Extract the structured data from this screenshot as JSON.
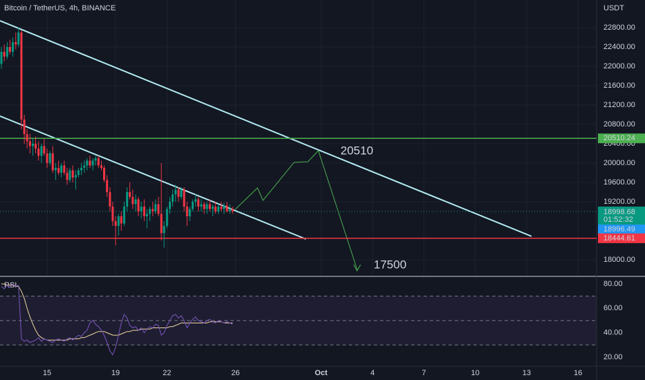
{
  "chart_data": {
    "type": "candlestick",
    "title": "Bitcoin / TetherUS, 4h, BINANCE",
    "price_axis_label": "USDT",
    "xlim": [
      12.25,
      47.08
    ],
    "xticks": [
      {
        "value": 15,
        "label": "15"
      },
      {
        "value": 19,
        "label": "19"
      },
      {
        "value": 22,
        "label": "22"
      },
      {
        "value": 26,
        "label": "26"
      },
      {
        "value": 31,
        "label": "Oct"
      },
      {
        "value": 34,
        "label": "4"
      },
      {
        "value": 37,
        "label": "7"
      },
      {
        "value": 40,
        "label": "10"
      },
      {
        "value": 43,
        "label": "13"
      },
      {
        "value": 46,
        "label": "16"
      }
    ],
    "ylim": [
      17657,
      23371
    ],
    "yticks": [
      {
        "value": 22800,
        "label": "22800.00"
      },
      {
        "value": 22400,
        "label": "22400.00"
      },
      {
        "value": 22000,
        "label": "22000.00"
      },
      {
        "value": 21600,
        "label": "21600.00"
      },
      {
        "value": 21200,
        "label": "21200.00"
      },
      {
        "value": 20800,
        "label": "20800.00"
      },
      {
        "value": 20400,
        "label": "20400.00"
      },
      {
        "value": 20000,
        "label": "20000.00"
      },
      {
        "value": 19600,
        "label": "19600.00"
      },
      {
        "value": 19200,
        "label": "19200.00"
      },
      {
        "value": 18000,
        "label": "18000.00"
      }
    ],
    "up_color": "#089981",
    "down_color": "#f23645",
    "x": [
      12.33,
      12.5,
      12.67,
      12.83,
      13,
      13.17,
      13.33,
      13.5,
      13.67,
      13.83,
      14,
      14.17,
      14.33,
      14.5,
      14.67,
      14.83,
      15,
      15.17,
      15.33,
      15.5,
      15.67,
      15.83,
      16,
      16.17,
      16.33,
      16.5,
      16.67,
      16.83,
      17,
      17.17,
      17.33,
      17.5,
      17.67,
      17.83,
      18,
      18.17,
      18.33,
      18.5,
      18.67,
      18.83,
      19,
      19.17,
      19.33,
      19.5,
      19.67,
      19.83,
      20,
      20.17,
      20.33,
      20.5,
      20.67,
      20.83,
      21,
      21.17,
      21.33,
      21.5,
      21.67,
      21.83,
      22,
      22.17,
      22.33,
      22.5,
      22.67,
      22.83,
      23,
      23.17,
      23.33,
      23.5,
      23.67,
      23.83,
      24,
      24.17,
      24.33,
      24.5,
      24.67,
      24.83,
      25,
      25.17,
      25.33,
      25.5,
      25.67,
      25.83
    ],
    "ohlc": [
      [
        22050,
        22400,
        21950,
        22300
      ],
      [
        22300,
        22450,
        22100,
        22200
      ],
      [
        22200,
        22500,
        22150,
        22400
      ],
      [
        22400,
        22550,
        22250,
        22300
      ],
      [
        22300,
        22600,
        22200,
        22500
      ],
      [
        22500,
        22700,
        22350,
        22450
      ],
      [
        22450,
        22800,
        22400,
        22700
      ],
      [
        22700,
        22750,
        20700,
        20900
      ],
      [
        20900,
        21000,
        20400,
        20600
      ],
      [
        20600,
        20700,
        20300,
        20450
      ],
      [
        20450,
        20600,
        20200,
        20350
      ],
      [
        20350,
        20500,
        20150,
        20400
      ],
      [
        20400,
        20550,
        20200,
        20300
      ],
      [
        20300,
        20450,
        20050,
        20150
      ],
      [
        20150,
        20400,
        20000,
        20350
      ],
      [
        20350,
        20500,
        20150,
        20200
      ],
      [
        20200,
        20300,
        19900,
        20000
      ],
      [
        20000,
        20250,
        19950,
        20200
      ],
      [
        20200,
        20350,
        19800,
        19850
      ],
      [
        19850,
        20000,
        19650,
        19900
      ],
      [
        19900,
        20050,
        19750,
        19800
      ],
      [
        19800,
        20000,
        19700,
        19950
      ],
      [
        19950,
        20050,
        19750,
        19800
      ],
      [
        19800,
        19900,
        19550,
        19650
      ],
      [
        19650,
        19900,
        19600,
        19850
      ],
      [
        19850,
        19950,
        19600,
        19700
      ],
      [
        19700,
        19850,
        19450,
        19750
      ],
      [
        19750,
        19900,
        19700,
        19850
      ],
      [
        19850,
        20000,
        19750,
        19900
      ],
      [
        19900,
        20050,
        19800,
        19950
      ],
      [
        19950,
        20100,
        19850,
        20050
      ],
      [
        20050,
        20150,
        19900,
        19950
      ],
      [
        19950,
        20100,
        19850,
        20050
      ],
      [
        20050,
        20150,
        19950,
        20100
      ],
      [
        20100,
        20150,
        19900,
        19950
      ],
      [
        19950,
        20050,
        19850,
        19900
      ],
      [
        19900,
        19950,
        19600,
        19650
      ],
      [
        19650,
        19750,
        19300,
        19400
      ],
      [
        19400,
        19500,
        19000,
        19100
      ],
      [
        19100,
        19200,
        18700,
        18800
      ],
      [
        18800,
        18900,
        18300,
        18700
      ],
      [
        18700,
        18950,
        18500,
        18900
      ],
      [
        18900,
        19000,
        18600,
        18750
      ],
      [
        18750,
        19200,
        18700,
        19100
      ],
      [
        19100,
        19500,
        19000,
        19400
      ],
      [
        19400,
        19600,
        19250,
        19300
      ],
      [
        19300,
        19450,
        19050,
        19150
      ],
      [
        19150,
        19350,
        19000,
        19250
      ],
      [
        19250,
        19300,
        18900,
        19000
      ],
      [
        19000,
        19200,
        18850,
        19100
      ],
      [
        19100,
        19250,
        18800,
        18900
      ],
      [
        18900,
        19050,
        18650,
        18950
      ],
      [
        18950,
        19100,
        18800,
        19050
      ],
      [
        19050,
        19200,
        18900,
        19000
      ],
      [
        19000,
        19250,
        18950,
        19150
      ],
      [
        19150,
        19300,
        18900,
        18950
      ],
      [
        18950,
        20000,
        18400,
        18550
      ],
      [
        18550,
        18800,
        18250,
        18700
      ],
      [
        18700,
        19100,
        18650,
        19050
      ],
      [
        19050,
        19300,
        18950,
        19200
      ],
      [
        19200,
        19450,
        19100,
        19350
      ],
      [
        19350,
        19550,
        19200,
        19450
      ],
      [
        19450,
        19500,
        19200,
        19300
      ],
      [
        19300,
        19500,
        19250,
        19450
      ],
      [
        19450,
        19500,
        19000,
        19100
      ],
      [
        19100,
        19200,
        18700,
        18900
      ],
      [
        18900,
        19100,
        18800,
        19050
      ],
      [
        19050,
        19250,
        19000,
        19200
      ],
      [
        19200,
        19350,
        19100,
        19250
      ],
      [
        19250,
        19300,
        19000,
        19100
      ],
      [
        19100,
        19250,
        19000,
        19150
      ],
      [
        19150,
        19200,
        18950,
        19050
      ],
      [
        19050,
        19200,
        18950,
        19150
      ],
      [
        19150,
        19250,
        19000,
        19050
      ],
      [
        19050,
        19150,
        18900,
        19100
      ],
      [
        19100,
        19200,
        18950,
        19000
      ],
      [
        19000,
        19150,
        18950,
        19100
      ],
      [
        19100,
        19200,
        19000,
        19050
      ],
      [
        19050,
        19180,
        18950,
        19120
      ],
      [
        19120,
        19200,
        18980,
        19000
      ],
      [
        19000,
        19150,
        18950,
        19050
      ],
      [
        19050,
        19100,
        18950,
        18999
      ]
    ],
    "levels": [
      {
        "value": 20510.24,
        "color": "#4caf50"
      },
      {
        "value": 18444.61,
        "color": "#f23645"
      }
    ],
    "last_price": 18998.68,
    "countdown": "01:52:32",
    "second_price": 18996.49,
    "annotations": [
      "20510",
      "17500"
    ],
    "rsi": {
      "label": "RSI",
      "color": "#7e57c2",
      "ma_color": "#f0d9a0",
      "ylim": [
        12.6,
        86.2
      ],
      "yticks": [
        {
          "value": 80,
          "label": "80.00"
        },
        {
          "value": 60,
          "label": "60.00"
        },
        {
          "value": 40,
          "label": "40.00"
        },
        {
          "value": 20,
          "label": "20.00"
        }
      ],
      "bands": [
        70,
        50,
        30
      ],
      "values": [
        78,
        76,
        79,
        77,
        80,
        78,
        79,
        35,
        33,
        34,
        32,
        33,
        34,
        36,
        33,
        35,
        34,
        33,
        32,
        34,
        35,
        34,
        33,
        35,
        36,
        34,
        36,
        38,
        37,
        40,
        42,
        48,
        50,
        47,
        45,
        42,
        38,
        32,
        25,
        22,
        28,
        38,
        48,
        55,
        52,
        46,
        44,
        45,
        42,
        44,
        40,
        43,
        45,
        44,
        47,
        46,
        38,
        40,
        46,
        50,
        54,
        55,
        52,
        54,
        50,
        44,
        48,
        51,
        53,
        50,
        49,
        48,
        50,
        51,
        49,
        48,
        50,
        49,
        48,
        49,
        48,
        47
      ],
      "ma": [
        80,
        80,
        79,
        79,
        79,
        78,
        78,
        74,
        68,
        60,
        53,
        47,
        42,
        38,
        36,
        35,
        34,
        34,
        34,
        34,
        34,
        34,
        34,
        34,
        35,
        35,
        35,
        35,
        36,
        36,
        37,
        38,
        39,
        40,
        41,
        41,
        41,
        40,
        39,
        38,
        38,
        38,
        39,
        40,
        41,
        41,
        42,
        42,
        42,
        43,
        43,
        43,
        43,
        44,
        44,
        44,
        44,
        44,
        44,
        45,
        45,
        46,
        47,
        48,
        48,
        48,
        48,
        48,
        48,
        48,
        48,
        48,
        48,
        49,
        49,
        49,
        49,
        49,
        48,
        48,
        48,
        48
      ]
    }
  }
}
